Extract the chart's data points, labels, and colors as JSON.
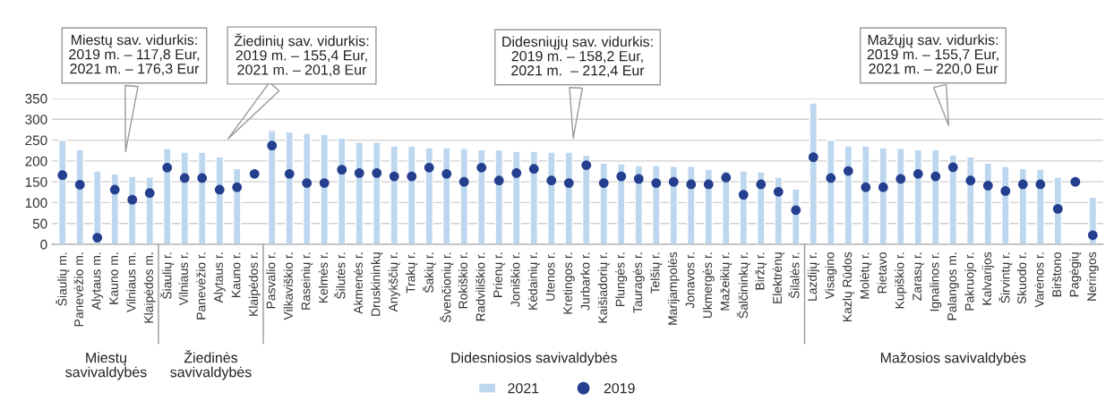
{
  "chart_data": {
    "type": "bar",
    "categories": [
      "Šiaulių m.",
      "Panevėžio m.",
      "Alytaus m.",
      "Kauno m.",
      "Vilniaus m.",
      "Klaipėdos m.",
      "Šiaulių r.",
      "Vilniaus r.",
      "Panevėžio r.",
      "Alytaus r.",
      "Kauno r.",
      "Klaipėdos r.",
      "Pasvalio r.",
      "Vilkaviškio r.",
      "Raseinių r.",
      "Kelmės r.",
      "Šilutės r.",
      "Akmenės r.",
      "Druskininkų",
      "Anykščių r.",
      "Trakų r.",
      "Šakių r.",
      "Švenčionių r.",
      "Rokiškio r.",
      "Radviliškio r.",
      "Prienų r.",
      "Joniškio r.",
      "Kėdainių r.",
      "Utenos r.",
      "Kretingos r.",
      "Jurbarko r.",
      "Kaišiadorių r.",
      "Plungės r.",
      "Tauragės r.",
      "Telšių r.",
      "Marijampolės",
      "Jonavos r.",
      "Ukmergės r.",
      "Mažeikių r.",
      "Šalčininkų r.",
      "Biržų r.",
      "Elektrėnų",
      "Šilalės r.",
      "Lazdijų r.",
      "Visagino",
      "Kazlų Rūdos",
      "Molėtų r.",
      "Rietavo",
      "Kupiškio r.",
      "Zarasų r.",
      "Ignalinos r.",
      "Palangos m.",
      "Pakruojo r.",
      "Kalvarijos",
      "Širvintų r.",
      "Skuodo r.",
      "Varėnos r.",
      "Birštono",
      "Pagėgių",
      "Neringos"
    ],
    "series": [
      {
        "name": "2021",
        "color": "#bdd7ee",
        "values": [
          250,
          227,
          176,
          169,
          163,
          161,
          230,
          221,
          221,
          210,
          182,
          null,
          273,
          270,
          266,
          264,
          255,
          245,
          245,
          236,
          236,
          232,
          232,
          230,
          227,
          227,
          223,
          223,
          221,
          221,
          214,
          195,
          193,
          189,
          189,
          187,
          187,
          180,
          176,
          176,
          174,
          161,
          133,
          339,
          250,
          236,
          236,
          232,
          230,
          227,
          227,
          214,
          210,
          195,
          187,
          182,
          180,
          161,
          null,
          113
        ]
      },
      {
        "name": "2019",
        "type": "scatter",
        "color": "#253f8f",
        "values": [
          166,
          143,
          16,
          131,
          107,
          123,
          184,
          159,
          159,
          131,
          137,
          169,
          237,
          169,
          147,
          147,
          179,
          171,
          171,
          163,
          163,
          184,
          169,
          150,
          184,
          153,
          171,
          181,
          153,
          147,
          190,
          147,
          163,
          157,
          147,
          150,
          144,
          144,
          160,
          119,
          144,
          126,
          82,
          209,
          159,
          176,
          137,
          137,
          157,
          169,
          163,
          185,
          153,
          141,
          128,
          144,
          144,
          85,
          150,
          22
        ]
      }
    ],
    "ylim": [
      0,
      350
    ],
    "yticks": [
      0,
      50,
      100,
      150,
      200,
      250,
      300,
      350
    ],
    "grid": "y",
    "legend": "bottom",
    "marker": "circle",
    "annotations": [
      "Miestų sav. vidurkis:\n2019 m. – 117,8 Eur,\n2021 m. – 176,3 Eur",
      "Žiedinių sav. vidurkis:\n2019 m. – 155,4 Eur,\n2021 m. – 201,8 Eur",
      "Didesniųjų sav. vidurkis:\n2019 m. – 158,2 Eur,\n2021 m.  – 212,4 Eur",
      "Mažųjų sav. vidurkis:\n2019 m. – 155,7 Eur,\n2021 m. – 220,0 Eur",
      "Miestų\nsavivaldybės",
      "Žiedinės\nsavivaldybės",
      "Didesniosios savivaldybės",
      "Mažosios savivaldybės"
    ]
  }
}
